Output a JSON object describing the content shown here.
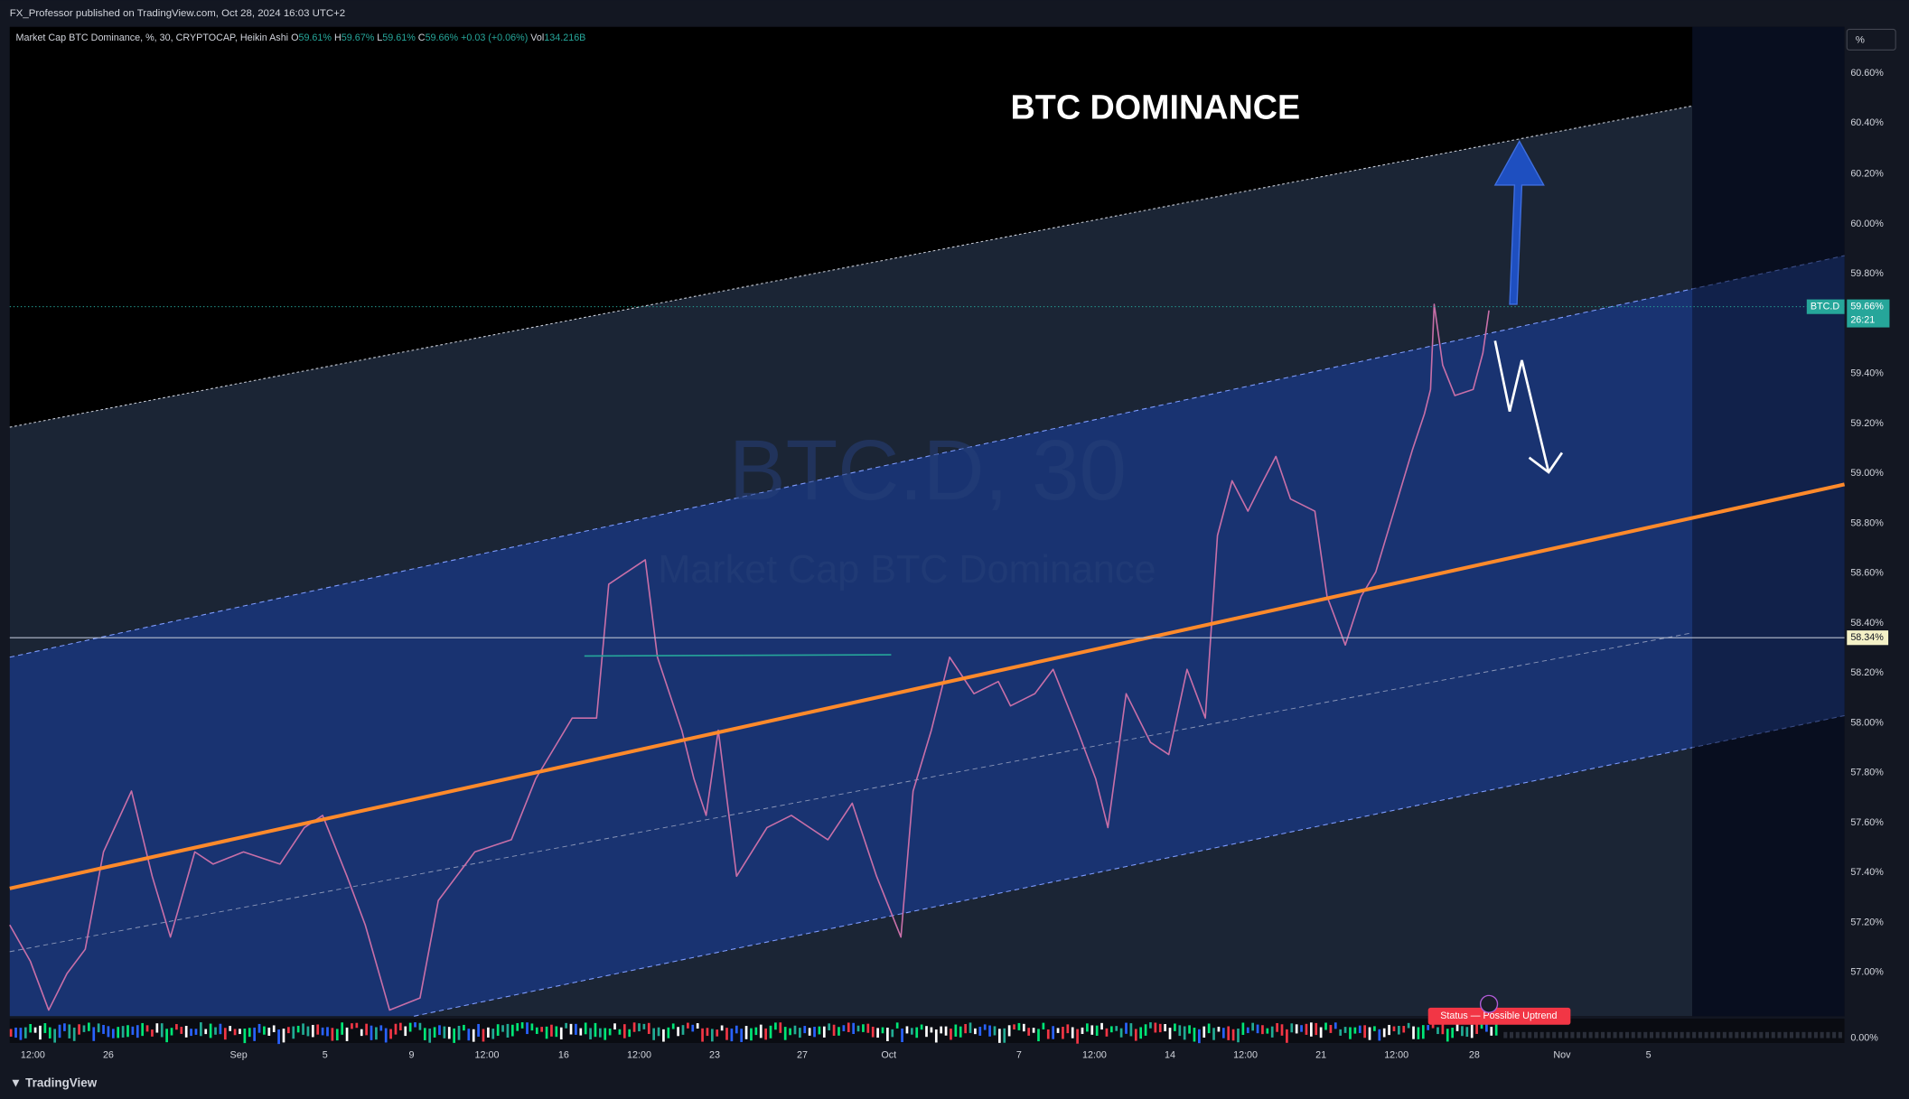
{
  "header": {
    "publisher": "FX_Professor published on TradingView.com, Oct 28, 2024 16:03 UTC+2"
  },
  "legend": {
    "symbol": "Market Cap BTC Dominance, %, 30, CRYPTOCAP, Heikin Ashi",
    "items": [
      {
        "label": "O",
        "value": "59.61%"
      },
      {
        "label": "H",
        "value": "59.67%"
      },
      {
        "label": "L",
        "value": "59.61%"
      },
      {
        "label": "C",
        "value": "59.66%"
      },
      {
        "label": "",
        "value": "+0.03 (+0.06%)"
      },
      {
        "label": "Vol",
        "value": "134.216B"
      }
    ]
  },
  "title": "BTC DOMINANCE",
  "watermark": {
    "symbol": "BTC.D, 30",
    "name": "Market Cap BTC Dominance"
  },
  "price_axis": {
    "unit": "%",
    "labels": [
      "60.60%",
      "60.40%",
      "60.20%",
      "60.00%",
      "59.80%",
      "59.40%",
      "59.20%",
      "59.00%",
      "58.80%",
      "58.60%",
      "58.40%",
      "58.20%",
      "58.00%",
      "57.80%",
      "57.60%",
      "57.40%",
      "57.20%",
      "57.00%",
      "0.00%"
    ],
    "current": {
      "symbol": "BTC.D",
      "price": "59.66%",
      "countdown": "26:21"
    },
    "line_label": "58.34%"
  },
  "time_axis": {
    "labels": [
      "12:00",
      "26",
      "Sep",
      "5",
      "9",
      "12:00",
      "16",
      "12:00",
      "23",
      "27",
      "Oct",
      "7",
      "12:00",
      "14",
      "12:00",
      "21",
      "12:00",
      "28",
      "Nov",
      "5"
    ]
  },
  "status": "Status — Possible Uptrend",
  "footer": {
    "brand": "TradingView"
  }
}
